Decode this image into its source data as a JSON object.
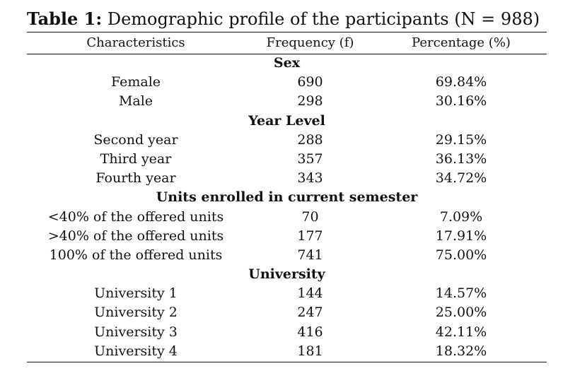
{
  "caption": {
    "label": "Table 1:",
    "text": " Demographic profile of the participants (N = 988)"
  },
  "headers": {
    "characteristics": "Characteristics",
    "frequency": "Frequency (f)",
    "percentage": "Percentage (%)"
  },
  "sections": [
    {
      "title": "Sex",
      "rows": [
        {
          "label": "Female",
          "frequency": "690",
          "percentage": "69.84%"
        },
        {
          "label": "Male",
          "frequency": "298",
          "percentage": "30.16%"
        }
      ]
    },
    {
      "title": "Year Level",
      "rows": [
        {
          "label": "Second year",
          "frequency": "288",
          "percentage": "29.15%"
        },
        {
          "label": "Third year",
          "frequency": "357",
          "percentage": "36.13%"
        },
        {
          "label": "Fourth year",
          "frequency": "343",
          "percentage": "34.72%"
        }
      ]
    },
    {
      "title": "Units enrolled in current semester",
      "rows": [
        {
          "label": "<40% of the offered units",
          "frequency": "70",
          "percentage": "7.09%"
        },
        {
          "label": ">40% of the offered units",
          "frequency": "177",
          "percentage": "17.91%"
        },
        {
          "label": "100% of the offered units",
          "frequency": "741",
          "percentage": "75.00%"
        }
      ]
    },
    {
      "title": "University",
      "rows": [
        {
          "label": "University 1",
          "frequency": "144",
          "percentage": "14.57%"
        },
        {
          "label": "University 2",
          "frequency": "247",
          "percentage": "25.00%"
        },
        {
          "label": "University 3",
          "frequency": "416",
          "percentage": "42.11%"
        },
        {
          "label": "University 4",
          "frequency": "181",
          "percentage": "18.32%"
        }
      ]
    }
  ]
}
